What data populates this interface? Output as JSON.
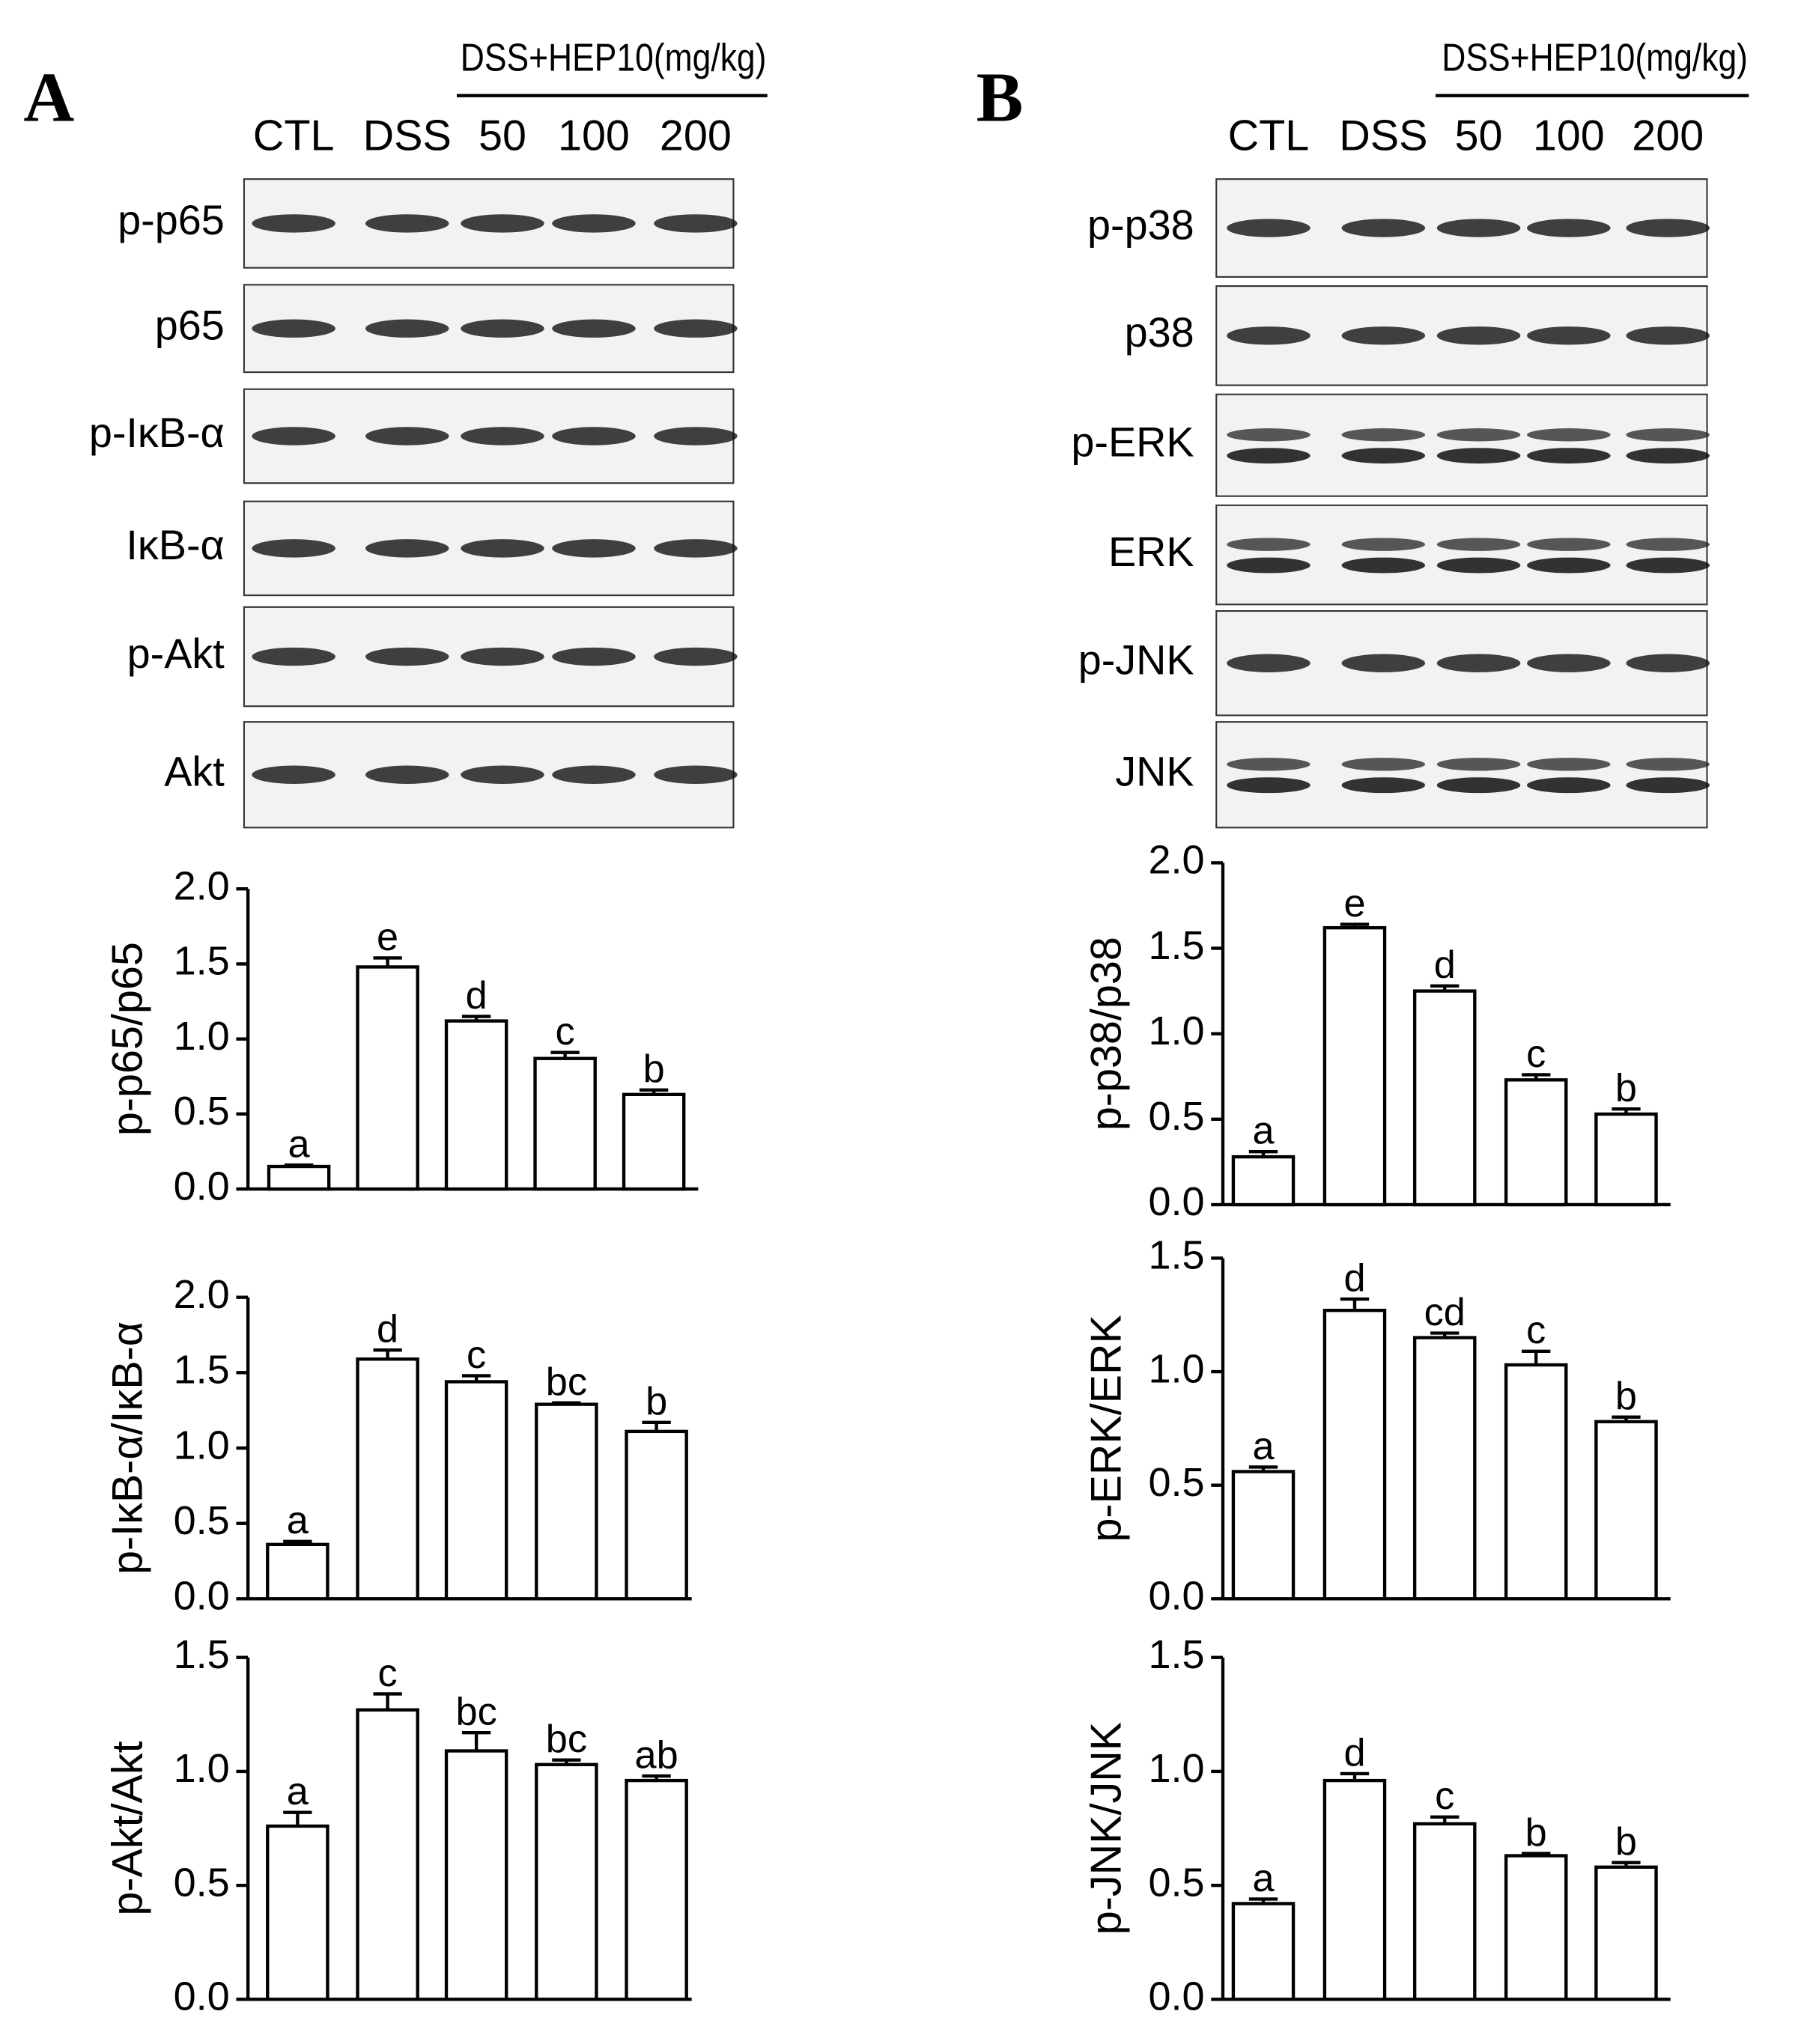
{
  "panels": [
    {
      "label": "A",
      "treatment": "DSS+HEP10(mg/kg)",
      "lanes": [
        "CTL",
        "DSS",
        "50",
        "100",
        "200"
      ],
      "blots": [
        "p-p65",
        "p65",
        "p-IκB-α",
        "IκB-α",
        "p-Akt",
        "Akt"
      ]
    },
    {
      "label": "B",
      "treatment": "DSS+HEP10(mg/kg)",
      "lanes": [
        "CTL",
        "DSS",
        "50",
        "100",
        "200"
      ],
      "blots": [
        "p-p38",
        "p38",
        "p-ERK",
        "ERK",
        "p-JNK",
        "JNK"
      ]
    }
  ],
  "chart_data": [
    {
      "type": "bar",
      "ylabel": "p-p65/p65",
      "color": "#ffffff",
      "values": [
        0.15,
        1.48,
        1.12,
        0.87,
        0.63
      ],
      "errors": [
        0.01,
        0.06,
        0.03,
        0.04,
        0.03
      ],
      "annotations": [
        "a",
        "e",
        "d",
        "c",
        "b"
      ],
      "ylim": [
        0,
        2
      ],
      "yticks": [
        {
          "value": 0,
          "label": "0.0"
        },
        {
          "value": 0.5,
          "label": "0.5"
        },
        {
          "value": 1,
          "label": "1.0"
        },
        {
          "value": 1.5,
          "label": "1.5"
        },
        {
          "value": 2,
          "label": "2.0"
        }
      ]
    },
    {
      "type": "bar",
      "ylabel": "p-IκB-α/IκB-α",
      "color": "#ffffff",
      "values": [
        0.36,
        1.59,
        1.44,
        1.29,
        1.11
      ],
      "errors": [
        0.02,
        0.06,
        0.04,
        0.01,
        0.06
      ],
      "annotations": [
        "a",
        "d",
        "c",
        "bc",
        "b"
      ],
      "ylim": [
        0,
        2
      ],
      "yticks": [
        {
          "value": 0,
          "label": "0.0"
        },
        {
          "value": 0.5,
          "label": "0.5"
        },
        {
          "value": 1,
          "label": "1.0"
        },
        {
          "value": 1.5,
          "label": "1.5"
        },
        {
          "value": 2,
          "label": "2.0"
        }
      ]
    },
    {
      "type": "bar",
      "ylabel": "p-Akt/Akt",
      "color": "#ffffff",
      "values": [
        0.76,
        1.27,
        1.09,
        1.03,
        0.96
      ],
      "errors": [
        0.06,
        0.07,
        0.08,
        0.02,
        0.02
      ],
      "annotations": [
        "a",
        "c",
        "bc",
        "bc",
        "ab"
      ],
      "ylim": [
        0,
        1.5
      ],
      "yticks": [
        {
          "value": 0,
          "label": "0.0"
        },
        {
          "value": 0.5,
          "label": "0.5"
        },
        {
          "value": 1,
          "label": "1.0"
        },
        {
          "value": 1.5,
          "label": "1.5"
        }
      ]
    },
    {
      "type": "bar",
      "ylabel": "p-p38/p38",
      "color": "#ffffff",
      "values": [
        0.28,
        1.62,
        1.25,
        0.73,
        0.53
      ],
      "errors": [
        0.03,
        0.02,
        0.03,
        0.03,
        0.03
      ],
      "annotations": [
        "a",
        "e",
        "d",
        "c",
        "b"
      ],
      "ylim": [
        0,
        2
      ],
      "yticks": [
        {
          "value": 0,
          "label": "0.0"
        },
        {
          "value": 0.5,
          "label": "0.5"
        },
        {
          "value": 1,
          "label": "1.0"
        },
        {
          "value": 1.5,
          "label": "1.5"
        },
        {
          "value": 2,
          "label": "2.0"
        }
      ]
    },
    {
      "type": "bar",
      "ylabel": "p-ERK/ERK",
      "color": "#ffffff",
      "values": [
        0.56,
        1.27,
        1.15,
        1.03,
        0.78
      ],
      "errors": [
        0.02,
        0.05,
        0.02,
        0.06,
        0.02
      ],
      "annotations": [
        "a",
        "d",
        "cd",
        "c",
        "b"
      ],
      "ylim": [
        0,
        1.5
      ],
      "yticks": [
        {
          "value": 0,
          "label": "0.0"
        },
        {
          "value": 0.5,
          "label": "0.5"
        },
        {
          "value": 1,
          "label": "1.0"
        },
        {
          "value": 1.5,
          "label": "1.5"
        }
      ]
    },
    {
      "type": "bar",
      "ylabel": "p-JNK/JNK",
      "color": "#ffffff",
      "values": [
        0.42,
        0.96,
        0.77,
        0.63,
        0.58
      ],
      "errors": [
        0.02,
        0.03,
        0.03,
        0.01,
        0.02
      ],
      "annotations": [
        "a",
        "d",
        "c",
        "b",
        "b"
      ],
      "ylim": [
        0,
        1.5
      ],
      "yticks": [
        {
          "value": 0,
          "label": "0.0"
        },
        {
          "value": 0.5,
          "label": "0.5"
        },
        {
          "value": 1,
          "label": "1.0"
        },
        {
          "value": 1.5,
          "label": "1.5"
        }
      ]
    }
  ]
}
